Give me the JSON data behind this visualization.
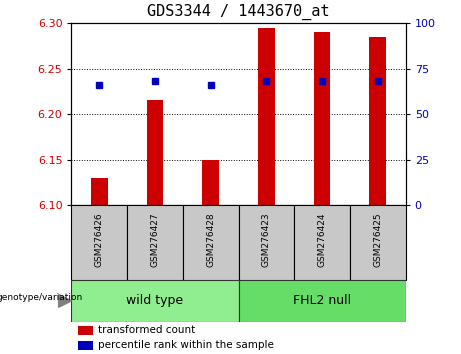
{
  "title": "GDS3344 / 1443670_at",
  "samples": [
    "GSM276426",
    "GSM276427",
    "GSM276428",
    "GSM276423",
    "GSM276424",
    "GSM276425"
  ],
  "transformed_count": [
    6.13,
    6.215,
    6.15,
    6.295,
    6.29,
    6.285
  ],
  "percentile_rank": [
    66,
    68,
    66,
    68,
    68,
    68
  ],
  "ylim_left": [
    6.1,
    6.3
  ],
  "ylim_right": [
    0,
    100
  ],
  "yticks_left": [
    6.1,
    6.15,
    6.2,
    6.25,
    6.3
  ],
  "yticks_right": [
    0,
    25,
    50,
    75,
    100
  ],
  "bar_color": "#CC0000",
  "dot_color": "#0000BB",
  "bar_baseline": 6.1,
  "bar_width": 0.3,
  "title_fontsize": 11,
  "legend_items": [
    "transformed count",
    "percentile rank within the sample"
  ],
  "legend_colors": [
    "#CC0000",
    "#0000BB"
  ],
  "tick_label_bg": "#C8C8C8",
  "wt_color": "#90EE90",
  "fhl2_color": "#66DD66",
  "group_border_color": "#333333"
}
